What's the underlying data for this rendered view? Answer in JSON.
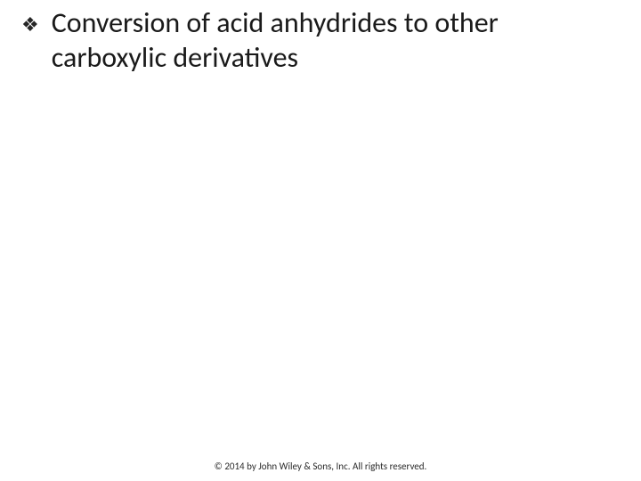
{
  "slide": {
    "bullet": {
      "glyph": "❖",
      "text": "Conversion of acid anhydrides to other carboxylic derivatives"
    },
    "footer": "© 2014 by John Wiley & Sons, Inc. All rights reserved."
  },
  "style": {
    "background_color": "#ffffff",
    "text_color": "#1a1a1a",
    "bullet_color": "#262626",
    "title_fontsize": 32,
    "footer_fontsize": 11,
    "footer_color": "#2b2b2b",
    "bullet_glyph_fontsize": 22
  }
}
